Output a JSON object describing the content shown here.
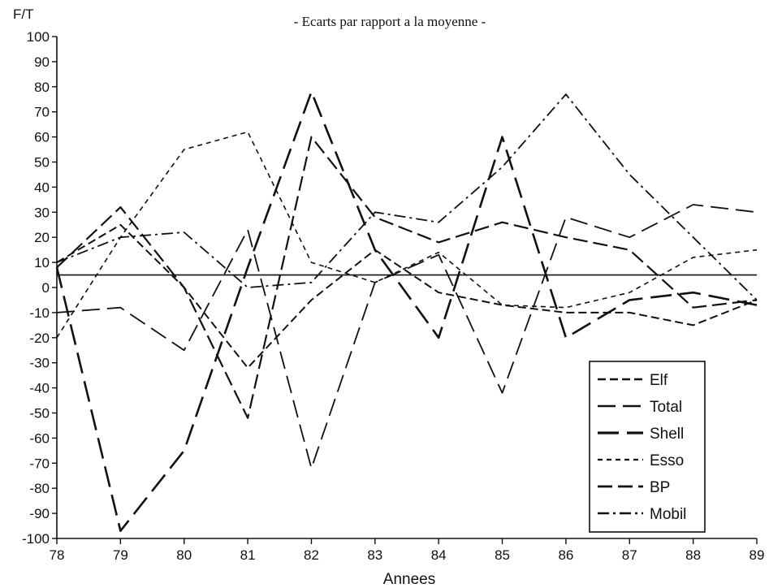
{
  "chart_data": {
    "type": "line",
    "title": "- Ecarts par rapport a la moyenne -",
    "xlabel": "Annees",
    "ylabel": "F/T",
    "x": [
      78,
      79,
      80,
      81,
      82,
      83,
      84,
      85,
      86,
      87,
      88,
      89
    ],
    "xlim": [
      78,
      89
    ],
    "ylim": [
      -100,
      100
    ],
    "yticks": [
      100,
      90,
      80,
      70,
      60,
      50,
      40,
      30,
      20,
      10,
      0,
      -10,
      -20,
      -30,
      -40,
      -50,
      -60,
      -70,
      -80,
      -90,
      -100
    ],
    "reference_line": 5,
    "grid": false,
    "legend": "bottom-right",
    "series": [
      {
        "name": "Elf",
        "dash": "10 5",
        "width": 2.0,
        "values": [
          10,
          25,
          0,
          -32,
          -5,
          15,
          -2,
          -7,
          -10,
          -10,
          -15,
          -5
        ]
      },
      {
        "name": "Total",
        "dash": "22 9",
        "width": 1.8,
        "values": [
          -10,
          -8,
          -25,
          23,
          -72,
          2,
          13,
          -42,
          28,
          20,
          33,
          30
        ]
      },
      {
        "name": "Shell",
        "dash": "26 10",
        "width": 2.6,
        "values": [
          8,
          -97,
          -65,
          8,
          78,
          15,
          -20,
          60,
          -20,
          -5,
          -2,
          -7
        ]
      },
      {
        "name": "Esso",
        "dash": "6 5",
        "width": 1.6,
        "values": [
          -20,
          20,
          55,
          62,
          10,
          2,
          14,
          -7,
          -8,
          -2,
          12,
          15
        ]
      },
      {
        "name": "BP",
        "dash": "18 7",
        "width": 2.2,
        "values": [
          8,
          32,
          0,
          -52,
          60,
          28,
          18,
          26,
          20,
          15,
          -8,
          -5
        ]
      },
      {
        "name": "Mobil",
        "dash": "14 5 3 5",
        "width": 1.8,
        "values": [
          10,
          20,
          22,
          0,
          2,
          30,
          26,
          48,
          77,
          45,
          20,
          -5
        ]
      }
    ]
  }
}
